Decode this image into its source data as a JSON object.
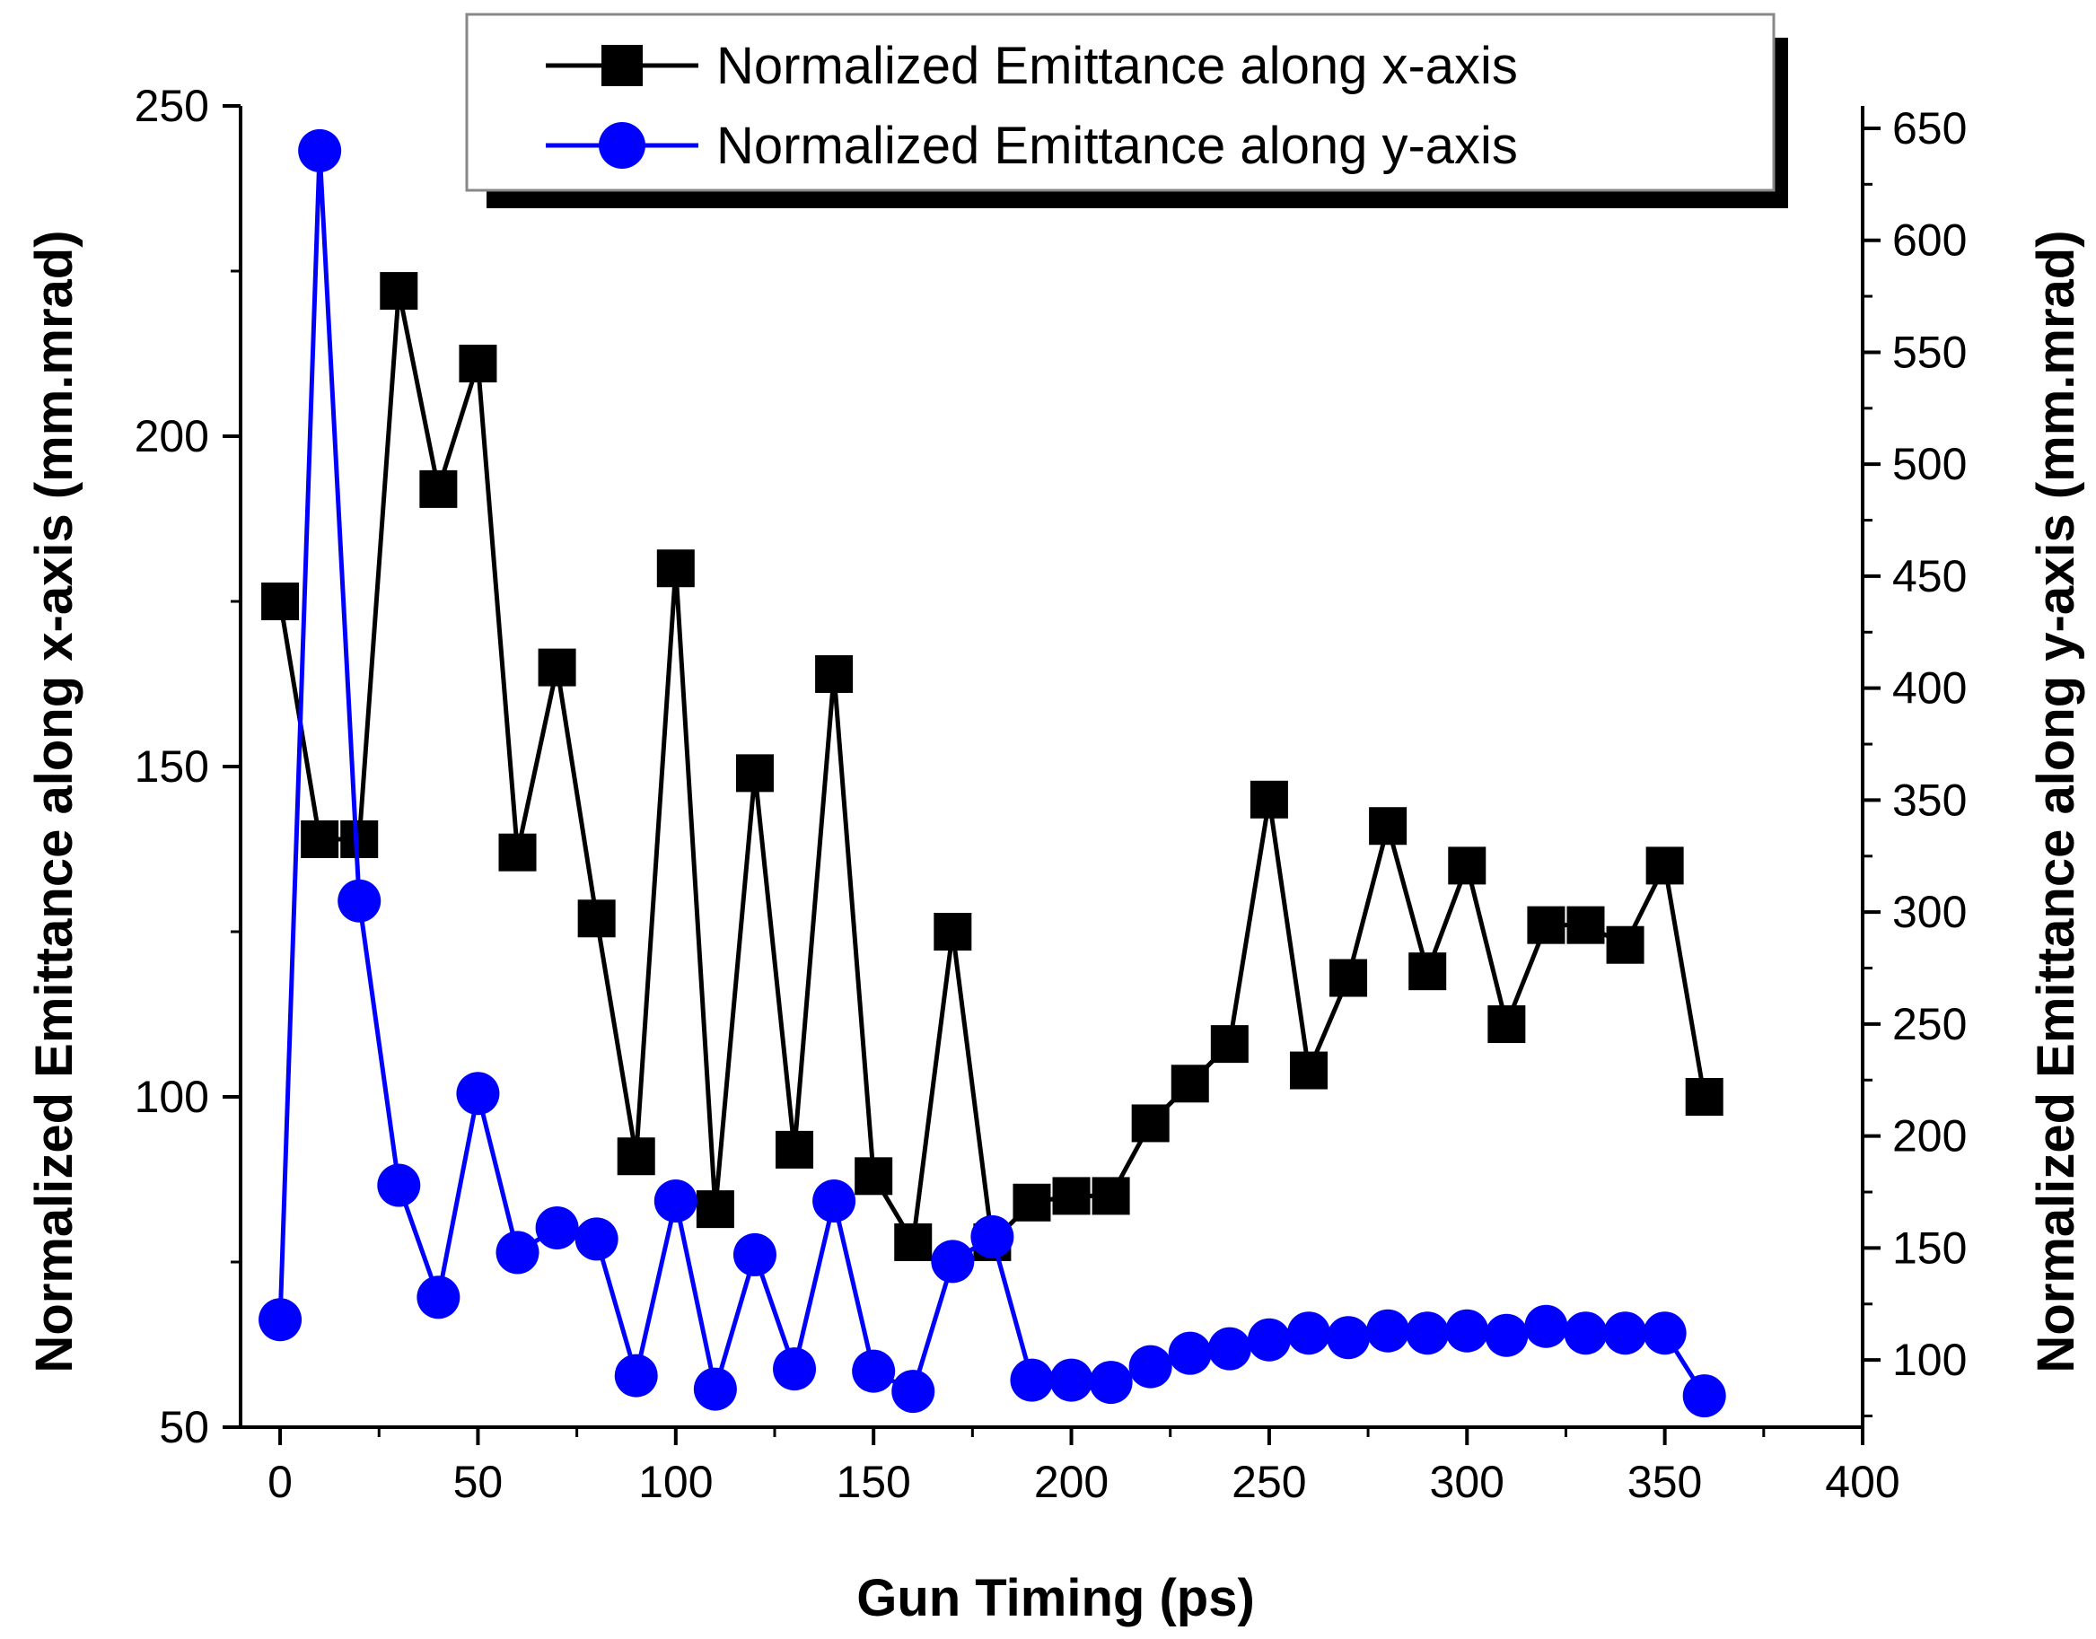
{
  "chart_data": {
    "type": "line",
    "title": "",
    "xlabel": "Gun Timing (ps)",
    "ylabel": "Normalized Emittance along x-axis (mm.mrad)",
    "y2label": "Normalized Emittance along y-axis (mm.mrad)",
    "xlim": [
      -10,
      400
    ],
    "ylim": [
      50,
      250
    ],
    "y2lim": [
      70,
      660
    ],
    "x_ticks": [
      0,
      50,
      100,
      150,
      200,
      250,
      300,
      350,
      400
    ],
    "y_ticks": [
      50,
      100,
      150,
      200,
      250
    ],
    "y2_ticks": [
      100,
      150,
      200,
      250,
      300,
      350,
      400,
      450,
      500,
      550,
      600,
      650
    ],
    "grid": false,
    "legend_position": "top-center",
    "colors": {
      "x_series": "#000000",
      "y_series": "#0000ff"
    },
    "series": [
      {
        "name": "Normalized Emittance along x-axis",
        "axis": "left",
        "marker": "square",
        "x": [
          0,
          10,
          20,
          30,
          40,
          50,
          60,
          70,
          80,
          90,
          100,
          110,
          120,
          130,
          140,
          150,
          160,
          170,
          180,
          190,
          200,
          210,
          220,
          230,
          240,
          250,
          260,
          270,
          280,
          290,
          300,
          310,
          320,
          330,
          340,
          350,
          360
        ],
        "values": [
          175,
          139,
          139,
          222,
          192,
          211,
          137,
          165,
          127,
          91,
          180,
          83,
          149,
          92,
          164,
          88,
          78,
          125,
          78,
          84,
          85,
          85,
          96,
          102,
          108,
          145,
          104,
          118,
          141,
          119,
          135,
          111,
          126,
          126,
          123,
          135,
          100
        ]
      },
      {
        "name": "Normalized Emittance along y-axis",
        "axis": "right",
        "marker": "circle",
        "x": [
          0,
          10,
          20,
          30,
          40,
          50,
          60,
          70,
          80,
          90,
          100,
          110,
          120,
          130,
          140,
          150,
          160,
          170,
          180,
          190,
          200,
          210,
          220,
          230,
          240,
          250,
          260,
          270,
          280,
          290,
          300,
          310,
          320,
          330,
          340,
          350,
          360
        ],
        "values": [
          118,
          640,
          305,
          178,
          128,
          219,
          148,
          159,
          154,
          93,
          171,
          87,
          147,
          96,
          171,
          95,
          86,
          144,
          155,
          91,
          91,
          90,
          97,
          103,
          105,
          109,
          112,
          110,
          113,
          112,
          113,
          111,
          115,
          112,
          112,
          112,
          84
        ]
      }
    ]
  }
}
